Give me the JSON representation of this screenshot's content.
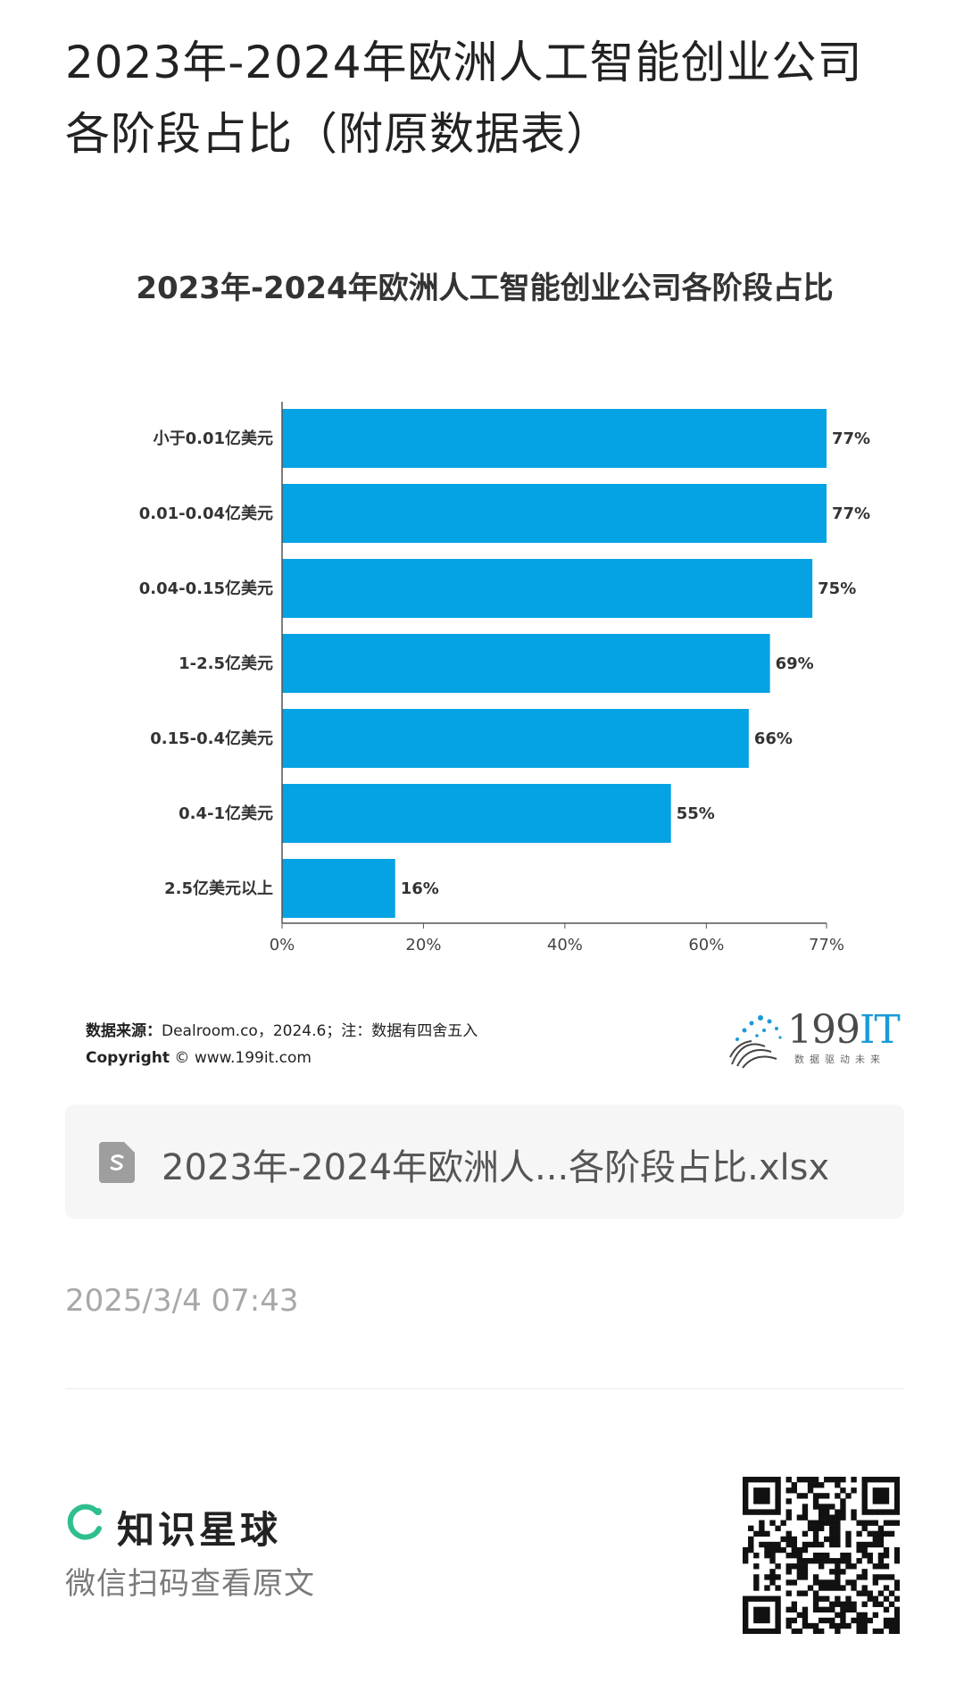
{
  "page": {
    "title": "2023年-2024年欧洲人工智能创业公司各阶段占比（附原数据表）"
  },
  "chart_data": {
    "type": "bar",
    "orientation": "horizontal",
    "title": "2023年-2024年欧洲人工智能创业公司各阶段占比",
    "categories": [
      "小于0.01亿美元",
      "0.01-0.04亿美元",
      "0.04-0.15亿美元",
      "1-2.5亿美元",
      "0.15-0.4亿美元",
      "0.4-1亿美元",
      "2.5亿美元以上"
    ],
    "values": [
      77,
      77,
      75,
      69,
      66,
      55,
      16
    ],
    "value_labels": [
      "77%",
      "77%",
      "75%",
      "69%",
      "66%",
      "55%",
      "16%"
    ],
    "xlim": [
      0,
      77
    ],
    "x_ticks": [
      0,
      20,
      40,
      60,
      77
    ],
    "x_tick_labels": [
      "0%",
      "20%",
      "40%",
      "60%",
      "77%"
    ],
    "bar_color": "#05a2e4",
    "grid": false
  },
  "source": {
    "label": "数据来源：",
    "text": "Dealroom.co，2024.6；注：数据有四舍五入",
    "copyright_label": "Copyright",
    "copyright_symbol": "©",
    "copyright_text": "www.199it.com"
  },
  "logo": {
    "text_num": "199",
    "text_it": "IT",
    "tagline": "数据驱动未来"
  },
  "file": {
    "icon": "spreadsheet-file-icon",
    "name": "2023年-2024年欧洲人...各阶段占比.xlsx"
  },
  "timestamp": "2025/3/4 07:43",
  "footer": {
    "brand_icon": "zsxq-ring-icon",
    "brand_name": "知识星球",
    "brand_color": "#2fbf8f",
    "subtitle": "微信扫码查看原文"
  }
}
